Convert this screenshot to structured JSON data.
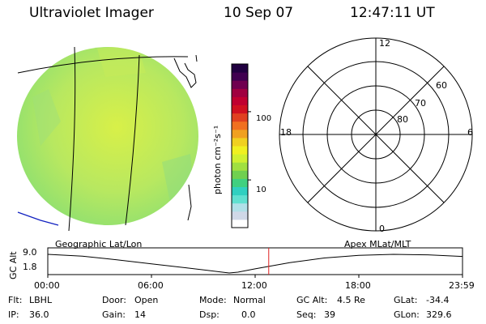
{
  "header": {
    "instrument": "Ultraviolet Imager",
    "date": "10 Sep 07",
    "time": "12:47:11 UT"
  },
  "colorbar": {
    "unit_label": "photon cm⁻²s⁻¹",
    "ticks": [
      {
        "label": "100",
        "value": 100
      },
      {
        "label": "10",
        "value": 10
      }
    ],
    "range": [
      2,
      500
    ],
    "colors": [
      "#ffffff",
      "#d0d8e8",
      "#b0e0e8",
      "#60e0d0",
      "#30d0c0",
      "#40d080",
      "#70d050",
      "#a0e040",
      "#d0f030",
      "#f0f020",
      "#f0d020",
      "#f0a020",
      "#f07020",
      "#e04020",
      "#d01020",
      "#c00030",
      "#a00040",
      "#700050",
      "#400050",
      "#200040"
    ]
  },
  "left_panel": {
    "label": "Geographic Lat/Lon",
    "fill_color": "#b8e860"
  },
  "right_panel": {
    "label": "Apex MLat/MLT",
    "mlt_labels": {
      "top": "12",
      "bottom": "0",
      "left": "18",
      "right": "6"
    },
    "lat_labels": [
      "60",
      "70",
      "80"
    ]
  },
  "timeline": {
    "ylabel": "GC Alt",
    "yticks": [
      "9.0",
      "1.8"
    ],
    "xticks": [
      "00:00",
      "06:00",
      "12:00",
      "18:00",
      "23:59"
    ],
    "marker_time_hours": 12.786,
    "marker_color": "#e02020",
    "altitude_series": {
      "hours": [
        0,
        2,
        4,
        6,
        8,
        10,
        10.5,
        11,
        12,
        14,
        16,
        18,
        20,
        22,
        24
      ],
      "values": [
        9.0,
        8.3,
        6.9,
        5.3,
        3.8,
        2.2,
        1.8,
        2.1,
        3.4,
        5.8,
        7.6,
        8.6,
        9.0,
        8.8,
        8.2
      ]
    }
  },
  "status": {
    "row1": [
      {
        "key": "Flt:",
        "value": "LBHL"
      },
      {
        "key": "Door:",
        "value": "Open"
      },
      {
        "key": "Mode:",
        "value": "Normal"
      },
      {
        "key": "GC Alt:",
        "value": "4.5 Re"
      },
      {
        "key": "GLat:",
        "value": "-34.4"
      }
    ],
    "row2": [
      {
        "key": "IP:",
        "value": "36.0"
      },
      {
        "key": "Gain:",
        "value": "14"
      },
      {
        "key": "Dsp:",
        "value": "0.0"
      },
      {
        "key": "Seq:",
        "value": "39"
      },
      {
        "key": "GLon:",
        "value": "329.6"
      }
    ]
  }
}
